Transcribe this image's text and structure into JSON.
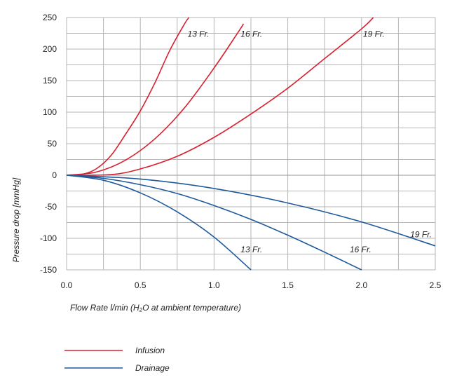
{
  "chart_data": {
    "type": "line",
    "xlabel": "Flow Rate l/min (H₂O at ambient temperature)",
    "ylabel": "Pressure drop [mmHg]",
    "xlim": [
      0,
      2.5
    ],
    "ylim": [
      -150,
      250
    ],
    "xticks": [
      "0.0",
      "0.5",
      "1.0",
      "1.5",
      "2.0",
      "2.5"
    ],
    "yticks": [
      "250",
      "200",
      "150",
      "100",
      "50",
      "0",
      "-50",
      "-100",
      "-150"
    ],
    "grid": true,
    "legend_position": "bottom-left",
    "legend": [
      {
        "label": "Infusion",
        "color": "#d8202f"
      },
      {
        "label": "Drainage",
        "color": "#1f5a9c"
      }
    ],
    "series": [
      {
        "group": "Infusion",
        "name": "13 Fr.",
        "color": "#d8202f",
        "x": [
          0,
          0.1,
          0.2,
          0.3,
          0.4,
          0.5,
          0.6,
          0.7,
          0.8,
          0.83
        ],
        "y": [
          0,
          1,
          10,
          31,
          65,
          102,
          147,
          198,
          240,
          250
        ]
      },
      {
        "group": "Infusion",
        "name": "16 Fr.",
        "color": "#d8202f",
        "x": [
          0,
          0.2,
          0.4,
          0.6,
          0.8,
          1.0,
          1.15,
          1.2
        ],
        "y": [
          0,
          5,
          24,
          58,
          107,
          170,
          222,
          240
        ]
      },
      {
        "group": "Infusion",
        "name": "19 Fr.",
        "color": "#d8202f",
        "x": [
          0,
          0.3,
          0.5,
          0.75,
          1.0,
          1.25,
          1.5,
          1.75,
          2.0,
          2.08
        ],
        "y": [
          0,
          1,
          10,
          30,
          60,
          97,
          138,
          185,
          232,
          250
        ]
      },
      {
        "group": "Drainage",
        "name": "13 Fr.",
        "color": "#1f5a9c",
        "x": [
          0,
          0.25,
          0.5,
          0.75,
          1.0,
          1.25
        ],
        "y": [
          0,
          -8,
          -28,
          -58,
          -98,
          -150
        ]
      },
      {
        "group": "Drainage",
        "name": "16 Fr.",
        "color": "#1f5a9c",
        "x": [
          0,
          0.25,
          0.5,
          0.75,
          1.0,
          1.25,
          1.5,
          1.75,
          2.0
        ],
        "y": [
          0,
          -5,
          -15,
          -29,
          -48,
          -70,
          -95,
          -122,
          -150
        ]
      },
      {
        "group": "Drainage",
        "name": "19 Fr.",
        "color": "#1f5a9c",
        "x": [
          0,
          0.5,
          1.0,
          1.5,
          2.0,
          2.5
        ],
        "y": [
          0,
          -6,
          -21,
          -44,
          -74,
          -112
        ]
      }
    ]
  }
}
